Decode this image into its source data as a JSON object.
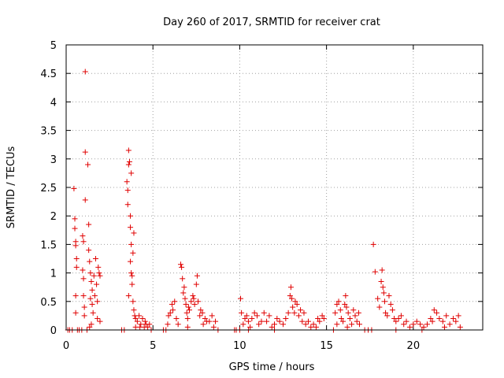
{
  "chart_data": {
    "type": "scatter",
    "title": "Day 260 of 2017, SRMTID for receiver crat",
    "xlabel": "GPS time / hours",
    "ylabel": "SRMTID / TECUs",
    "xlim": [
      0,
      24
    ],
    "ylim": [
      0,
      5
    ],
    "x_ticks": [
      0,
      5,
      10,
      15,
      20
    ],
    "x_tick_labels": [
      "0",
      "5",
      "10",
      "15",
      "20"
    ],
    "y_ticks": [
      0,
      0.5,
      1,
      1.5,
      2,
      2.5,
      3,
      3.5,
      4,
      4.5,
      5
    ],
    "y_tick_labels": [
      "0",
      "0.5",
      "1",
      "1.5",
      "2",
      "2.5",
      "3",
      "3.5",
      "4",
      "4.5",
      "5"
    ],
    "grid": true,
    "marker": "+",
    "color": "#e00000",
    "series": [
      {
        "name": "SRMTID",
        "points": [
          [
            0.1,
            0.0
          ],
          [
            0.2,
            0.0
          ],
          [
            0.35,
            0.0
          ],
          [
            0.45,
            2.48
          ],
          [
            0.5,
            1.95
          ],
          [
            0.5,
            1.78
          ],
          [
            0.55,
            1.55
          ],
          [
            0.55,
            1.48
          ],
          [
            0.6,
            1.25
          ],
          [
            0.6,
            1.1
          ],
          [
            0.55,
            0.6
          ],
          [
            0.55,
            0.3
          ],
          [
            0.65,
            0.0
          ],
          [
            0.75,
            0.0
          ],
          [
            0.9,
            0.0
          ],
          [
            0.95,
            1.65
          ],
          [
            1.0,
            1.55
          ],
          [
            0.95,
            1.05
          ],
          [
            1.0,
            0.9
          ],
          [
            1.0,
            0.6
          ],
          [
            1.05,
            0.4
          ],
          [
            1.05,
            0.25
          ],
          [
            1.1,
            4.53
          ],
          [
            1.1,
            3.12
          ],
          [
            1.1,
            2.28
          ],
          [
            1.25,
            2.9
          ],
          [
            1.3,
            1.85
          ],
          [
            1.3,
            1.4
          ],
          [
            1.35,
            1.2
          ],
          [
            1.4,
            1.0
          ],
          [
            1.45,
            0.85
          ],
          [
            1.5,
            0.7
          ],
          [
            1.4,
            0.55
          ],
          [
            1.5,
            0.45
          ],
          [
            1.55,
            0.3
          ],
          [
            1.45,
            0.1
          ],
          [
            1.6,
            0.95
          ],
          [
            1.65,
            0.6
          ],
          [
            1.7,
            1.25
          ],
          [
            1.75,
            0.8
          ],
          [
            1.8,
            0.2
          ],
          [
            1.8,
            0.5
          ],
          [
            1.85,
            1.1
          ],
          [
            1.9,
            1.0
          ],
          [
            1.95,
            0.95
          ],
          [
            1.95,
            0.15
          ],
          [
            1.2,
            0.0
          ],
          [
            1.35,
            0.05
          ],
          [
            3.2,
            0.0
          ],
          [
            3.35,
            0.0
          ],
          [
            3.5,
            2.6
          ],
          [
            3.55,
            2.45
          ],
          [
            3.55,
            2.2
          ],
          [
            3.6,
            3.15
          ],
          [
            3.6,
            2.9
          ],
          [
            3.65,
            2.95
          ],
          [
            3.7,
            2.0
          ],
          [
            3.7,
            1.8
          ],
          [
            3.75,
            1.5
          ],
          [
            3.7,
            1.2
          ],
          [
            3.75,
            1.0
          ],
          [
            3.8,
            0.8
          ],
          [
            3.6,
            0.6
          ],
          [
            3.85,
            0.5
          ],
          [
            3.9,
            0.35
          ],
          [
            3.8,
            0.95
          ],
          [
            3.85,
            1.35
          ],
          [
            3.9,
            1.7
          ],
          [
            3.75,
            2.75
          ],
          [
            3.95,
            0.25
          ],
          [
            4.0,
            0.2
          ],
          [
            4.1,
            0.15
          ],
          [
            4.2,
            0.25
          ],
          [
            4.3,
            0.1
          ],
          [
            4.4,
            0.2
          ],
          [
            4.5,
            0.05
          ],
          [
            4.6,
            0.1
          ],
          [
            4.7,
            0.05
          ],
          [
            4.8,
            0.1
          ],
          [
            4.9,
            0.0
          ],
          [
            4.0,
            0.05
          ],
          [
            4.25,
            0.05
          ],
          [
            4.55,
            0.15
          ],
          [
            5.6,
            0.0
          ],
          [
            5.75,
            0.0
          ],
          [
            5.85,
            0.1
          ],
          [
            5.9,
            0.25
          ],
          [
            6.0,
            0.3
          ],
          [
            6.1,
            0.45
          ],
          [
            6.15,
            0.35
          ],
          [
            6.25,
            0.5
          ],
          [
            6.35,
            0.2
          ],
          [
            6.45,
            0.1
          ],
          [
            6.6,
            1.15
          ],
          [
            6.65,
            1.1
          ],
          [
            6.7,
            0.9
          ],
          [
            6.75,
            0.65
          ],
          [
            6.8,
            0.75
          ],
          [
            6.85,
            0.55
          ],
          [
            6.9,
            0.45
          ],
          [
            6.95,
            0.3
          ],
          [
            7.0,
            0.2
          ],
          [
            7.05,
            0.4
          ],
          [
            7.1,
            0.35
          ],
          [
            7.2,
            0.5
          ],
          [
            7.3,
            0.6
          ],
          [
            7.35,
            0.55
          ],
          [
            7.4,
            0.45
          ],
          [
            7.5,
            0.8
          ],
          [
            7.55,
            0.95
          ],
          [
            7.6,
            0.5
          ],
          [
            7.7,
            0.25
          ],
          [
            7.75,
            0.35
          ],
          [
            7.85,
            0.3
          ],
          [
            8.0,
            0.2
          ],
          [
            8.1,
            0.15
          ],
          [
            8.25,
            0.15
          ],
          [
            8.4,
            0.25
          ],
          [
            8.5,
            0.05
          ],
          [
            8.6,
            0.15
          ],
          [
            8.75,
            0.0
          ],
          [
            7.0,
            0.05
          ],
          [
            7.9,
            0.1
          ],
          [
            9.7,
            0.0
          ],
          [
            9.8,
            0.0
          ],
          [
            10.0,
            0.0
          ],
          [
            10.05,
            0.55
          ],
          [
            10.1,
            0.3
          ],
          [
            10.2,
            0.1
          ],
          [
            10.3,
            0.2
          ],
          [
            10.4,
            0.25
          ],
          [
            10.5,
            0.15
          ],
          [
            10.6,
            0.05
          ],
          [
            10.7,
            0.2
          ],
          [
            10.85,
            0.3
          ],
          [
            11.0,
            0.25
          ],
          [
            11.1,
            0.1
          ],
          [
            11.25,
            0.15
          ],
          [
            11.4,
            0.3
          ],
          [
            11.55,
            0.15
          ],
          [
            11.7,
            0.25
          ],
          [
            11.85,
            0.05
          ],
          [
            12.0,
            0.1
          ],
          [
            12.15,
            0.2
          ],
          [
            12.3,
            0.15
          ],
          [
            12.5,
            0.1
          ],
          [
            12.65,
            0.2
          ],
          [
            12.8,
            0.3
          ],
          [
            12.9,
            0.6
          ],
          [
            12.95,
            0.75
          ],
          [
            13.0,
            0.55
          ],
          [
            13.05,
            0.4
          ],
          [
            13.15,
            0.3
          ],
          [
            13.2,
            0.5
          ],
          [
            13.3,
            0.45
          ],
          [
            13.4,
            0.25
          ],
          [
            13.5,
            0.35
          ],
          [
            13.6,
            0.15
          ],
          [
            13.7,
            0.3
          ],
          [
            13.8,
            0.1
          ],
          [
            13.95,
            0.15
          ],
          [
            14.1,
            0.05
          ],
          [
            14.25,
            0.1
          ],
          [
            14.4,
            0.05
          ],
          [
            14.5,
            0.2
          ],
          [
            14.6,
            0.15
          ],
          [
            14.75,
            0.25
          ],
          [
            14.85,
            0.2
          ],
          [
            10.5,
            0.0
          ],
          [
            12.0,
            0.0
          ],
          [
            15.4,
            0.0
          ],
          [
            15.5,
            0.3
          ],
          [
            15.6,
            0.45
          ],
          [
            15.7,
            0.5
          ],
          [
            15.8,
            0.35
          ],
          [
            15.85,
            0.2
          ],
          [
            15.95,
            0.15
          ],
          [
            16.05,
            0.45
          ],
          [
            16.1,
            0.6
          ],
          [
            16.15,
            0.4
          ],
          [
            16.25,
            0.3
          ],
          [
            16.35,
            0.2
          ],
          [
            16.45,
            0.1
          ],
          [
            16.55,
            0.35
          ],
          [
            16.65,
            0.25
          ],
          [
            16.75,
            0.15
          ],
          [
            16.85,
            0.3
          ],
          [
            16.9,
            0.1
          ],
          [
            15.6,
            0.1
          ],
          [
            16.2,
            0.05
          ],
          [
            17.2,
            0.0
          ],
          [
            17.4,
            0.0
          ],
          [
            17.6,
            0.0
          ],
          [
            17.7,
            1.5
          ],
          [
            17.8,
            1.02
          ],
          [
            17.95,
            0.55
          ],
          [
            18.05,
            0.4
          ],
          [
            18.15,
            0.85
          ],
          [
            18.2,
            1.05
          ],
          [
            18.25,
            0.75
          ],
          [
            18.3,
            0.65
          ],
          [
            18.35,
            0.5
          ],
          [
            18.4,
            0.3
          ],
          [
            18.5,
            0.25
          ],
          [
            18.6,
            0.6
          ],
          [
            18.7,
            0.45
          ],
          [
            18.8,
            0.35
          ],
          [
            18.9,
            0.2
          ],
          [
            19.0,
            0.15
          ],
          [
            19.15,
            0.2
          ],
          [
            19.3,
            0.25
          ],
          [
            19.45,
            0.1
          ],
          [
            19.6,
            0.15
          ],
          [
            19.8,
            0.05
          ],
          [
            20.0,
            0.1
          ],
          [
            20.2,
            0.15
          ],
          [
            20.4,
            0.1
          ],
          [
            20.6,
            0.05
          ],
          [
            20.8,
            0.1
          ],
          [
            21.0,
            0.2
          ],
          [
            21.1,
            0.15
          ],
          [
            21.2,
            0.35
          ],
          [
            21.35,
            0.3
          ],
          [
            21.5,
            0.2
          ],
          [
            21.7,
            0.15
          ],
          [
            21.9,
            0.25
          ],
          [
            22.1,
            0.1
          ],
          [
            22.3,
            0.2
          ],
          [
            22.45,
            0.15
          ],
          [
            22.6,
            0.25
          ],
          [
            22.7,
            0.05
          ],
          [
            19.0,
            0.0
          ],
          [
            20.5,
            0.0
          ],
          [
            21.8,
            0.05
          ]
        ]
      }
    ]
  }
}
